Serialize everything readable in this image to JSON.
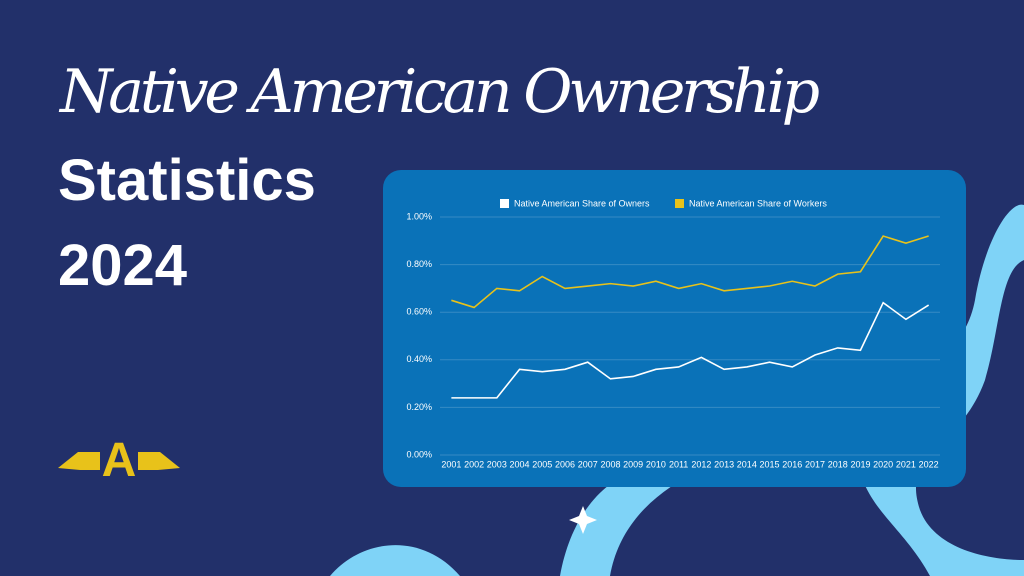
{
  "header": {
    "script_title": "Native American Ownership",
    "title": "Statistics",
    "year": "2024"
  },
  "logo": "A",
  "chart_data": {
    "type": "line",
    "categories": [
      "2001",
      "2002",
      "2003",
      "2004",
      "2005",
      "2006",
      "2007",
      "2008",
      "2009",
      "2010",
      "2011",
      "2012",
      "2013",
      "2014",
      "2015",
      "2016",
      "2017",
      "2018",
      "2019",
      "2020",
      "2021",
      "2022"
    ],
    "series": [
      {
        "name": "Native American Share of Owners",
        "color": "#ffffff",
        "values": [
          0.24,
          0.24,
          0.24,
          0.36,
          0.35,
          0.36,
          0.39,
          0.32,
          0.33,
          0.36,
          0.37,
          0.41,
          0.36,
          0.37,
          0.39,
          0.37,
          0.42,
          0.45,
          0.44,
          0.64,
          0.57,
          0.63
        ]
      },
      {
        "name": "Native American Share of Workers",
        "color": "#e8c21a",
        "values": [
          0.65,
          0.62,
          0.7,
          0.69,
          0.75,
          0.7,
          0.71,
          0.72,
          0.71,
          0.73,
          0.7,
          0.72,
          0.69,
          0.7,
          0.71,
          0.73,
          0.71,
          0.76,
          0.77,
          0.92,
          0.89,
          0.92
        ]
      }
    ],
    "ylim": [
      0,
      1
    ],
    "yticks": [
      {
        "value": 0,
        "label": "0.00%"
      },
      {
        "value": 0.2,
        "label": "0.20%"
      },
      {
        "value": 0.4,
        "label": "0.40%"
      },
      {
        "value": 0.6,
        "label": "0.60%"
      },
      {
        "value": 0.8,
        "label": "0.80%"
      },
      {
        "value": 1,
        "label": "1.00%"
      }
    ],
    "grid": true,
    "legend": "top"
  }
}
